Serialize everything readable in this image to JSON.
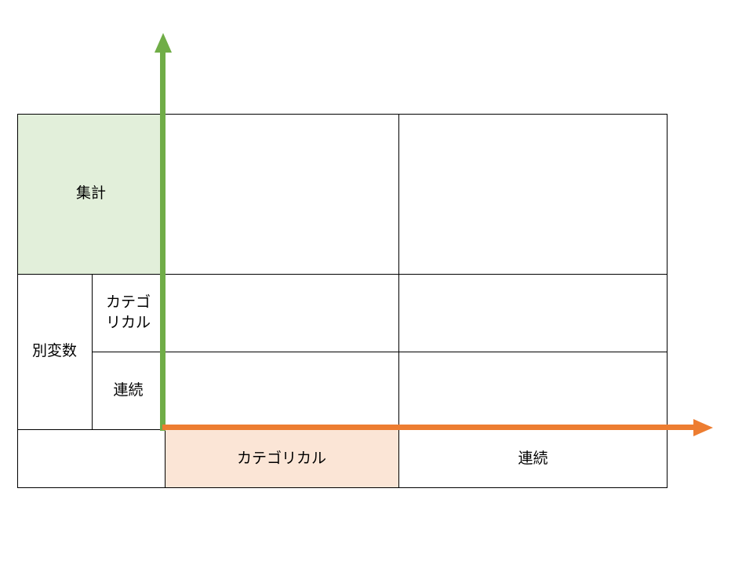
{
  "table": {
    "aggregate_label": "集計",
    "variable_label": "別変数",
    "row_categorical_label": "カテゴ\nリカル",
    "row_continuous_label": "連続",
    "col_categorical_label": "カテゴリカル",
    "col_continuous_label": "連続"
  },
  "colors": {
    "vertical_arrow": "#70ad47",
    "horizontal_arrow": "#ed7d31",
    "aggregate_fill": "#e2efda",
    "categorical_fill": "#fbe5d6"
  }
}
